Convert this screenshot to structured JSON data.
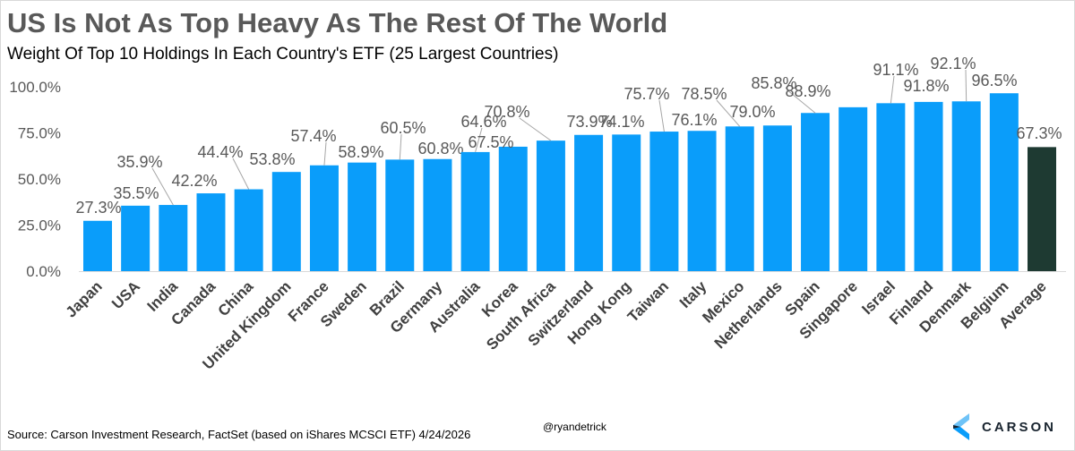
{
  "title": "US Is Not As Top Heavy As The Rest Of The World",
  "subtitle": "Weight Of Top 10 Holdings In Each Country's ETF (25 Largest Countries)",
  "source": "Source: Carson Investment Research, FactSet (based on iShares MCSCI ETF) 4/24/2026",
  "handle": "@ryandetrick",
  "logo_text": "CARSON",
  "chart_data": {
    "type": "bar",
    "title": "Weight Of Top 10 Holdings In Each Country's ETF (25 Largest Countries)",
    "xlabel": "",
    "ylabel": "",
    "ylim": [
      0,
      100
    ],
    "y_ticks": [
      "0.0%",
      "25.0%",
      "50.0%",
      "75.0%",
      "100.0%"
    ],
    "grid": false,
    "categories": [
      "Japan",
      "USA",
      "India",
      "Canada",
      "China",
      "United Kingdom",
      "France",
      "Sweden",
      "Brazil",
      "Germany",
      "Australia",
      "Korea",
      "South Africa",
      "Switzerland",
      "Hong Kong",
      "Taiwan",
      "Italy",
      "Mexico",
      "Netherlands",
      "Spain",
      "Singapore",
      "Israel",
      "Finland",
      "Denmark",
      "Belgium",
      "Average"
    ],
    "values": [
      27.3,
      35.5,
      35.9,
      42.2,
      44.4,
      53.8,
      57.4,
      58.9,
      60.5,
      60.8,
      64.6,
      67.5,
      70.8,
      73.9,
      74.1,
      75.7,
      76.1,
      78.5,
      79.0,
      85.8,
      88.9,
      91.1,
      91.8,
      92.1,
      96.5,
      67.3
    ],
    "data_labels": [
      "27.3%",
      "35.5%",
      "35.9%",
      "42.2%",
      "44.4%",
      "53.8%",
      "57.4%",
      "58.9%",
      "60.5%",
      "60.8%",
      "64.6%",
      "67.5%",
      "70.8%",
      "73.9%",
      "74.1%",
      "75.7%",
      "76.1%",
      "78.5%",
      "79.0%",
      "85.8%",
      "88.9%",
      "91.1%",
      "91.8%",
      "92.1%",
      "96.5%",
      "67.3%"
    ],
    "colors": {
      "bar": "#0a9dfa",
      "average_bar": "#1e3a32",
      "text": "#595959"
    }
  }
}
